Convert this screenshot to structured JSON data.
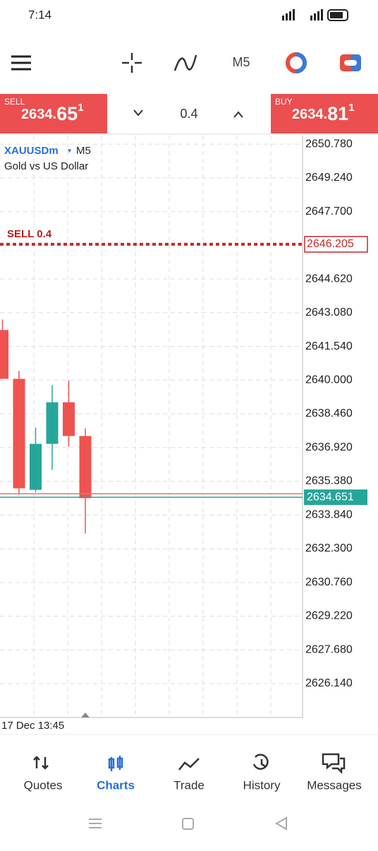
{
  "status_bar": {
    "time": "7:14"
  },
  "toolbar": {
    "timeframe": "M5"
  },
  "trade_bar": {
    "sell": {
      "label": "SELL",
      "price_main": "2634.",
      "price_big": "65",
      "price_sup": "1"
    },
    "lot": "0.4",
    "buy": {
      "label": "BUY",
      "price_main": "2634.",
      "price_big": "81",
      "price_sup": "1"
    }
  },
  "chart": {
    "symbol": "XAUUSDm",
    "timeframe": "M5",
    "description": "Gold vs US Dollar",
    "ylim": [
      2624.59,
      2651.17
    ],
    "yticks": [
      {
        "value": 2650.78,
        "label": "2650.780"
      },
      {
        "value": 2649.24,
        "label": "2649.240"
      },
      {
        "value": 2647.7,
        "label": "2647.700"
      },
      {
        "value": 2644.62,
        "label": "2644.620"
      },
      {
        "value": 2643.08,
        "label": "2643.080"
      },
      {
        "value": 2641.54,
        "label": "2641.540"
      },
      {
        "value": 2640,
        "label": "2640.000"
      },
      {
        "value": 2638.46,
        "label": "2638.460"
      },
      {
        "value": 2636.92,
        "label": "2636.920"
      },
      {
        "value": 2635.38,
        "label": "2635.380"
      },
      {
        "value": 2633.84,
        "label": "2633.840"
      },
      {
        "value": 2632.3,
        "label": "2632.300"
      },
      {
        "value": 2630.76,
        "label": "2630.760"
      },
      {
        "value": 2629.22,
        "label": "2629.220"
      },
      {
        "value": 2627.68,
        "label": "2627.680"
      },
      {
        "value": 2626.14,
        "label": "2626.140"
      }
    ],
    "order": {
      "label": "SELL 0.4",
      "price": {
        "value": 2646.205,
        "label": "2646.205"
      }
    },
    "bid": {
      "value": 2634.651,
      "label": "2634.651"
    },
    "ask": 2634.811,
    "candles": [
      {
        "open": 2642.29,
        "high": 2642.77,
        "low": 2640.06,
        "close": 2640.06
      },
      {
        "open": 2640.06,
        "high": 2640.42,
        "low": 2634.77,
        "close": 2635.06
      },
      {
        "open": 2634.99,
        "high": 2637.83,
        "low": 2634.87,
        "close": 2637.09
      },
      {
        "open": 2637.09,
        "high": 2639.77,
        "low": 2635.9,
        "close": 2638.99
      },
      {
        "open": 2638.99,
        "high": 2639.99,
        "low": 2636.96,
        "close": 2637.45
      },
      {
        "open": 2637.45,
        "high": 2637.8,
        "low": 2632.99,
        "close": 2634.61
      }
    ],
    "time_label": "17 Dec 13:45"
  },
  "bottom_nav": [
    "Quotes",
    "Charts",
    "Trade",
    "History",
    "Messages"
  ]
}
